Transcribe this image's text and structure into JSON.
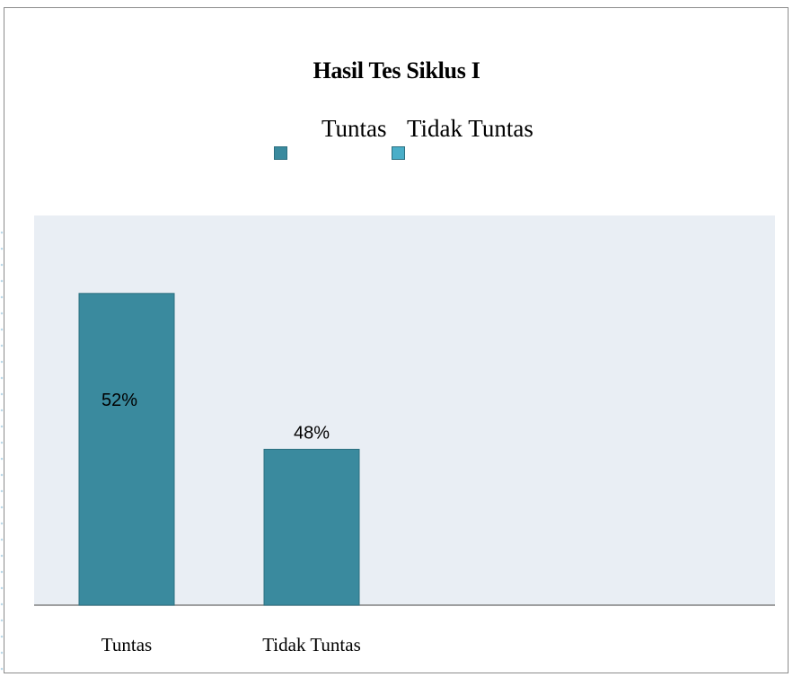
{
  "chart_data": {
    "type": "bar",
    "title": "Hasil Tes Siklus I",
    "categories": [
      "Tuntas",
      "Tidak Tuntas"
    ],
    "values": [
      52,
      48
    ],
    "data_labels": [
      "52%",
      "48%"
    ],
    "unit": "%",
    "legend": {
      "placement": "top",
      "entries": [
        {
          "name": "Tuntas",
          "color": "#3a8a9e"
        },
        {
          "name": "Tidak Tuntas",
          "color": "#4aaec8"
        }
      ]
    },
    "bar_color": "#3a8a9e",
    "plot_background": "#e9eef4",
    "ylim": [
      44,
      54
    ],
    "grid": false
  }
}
